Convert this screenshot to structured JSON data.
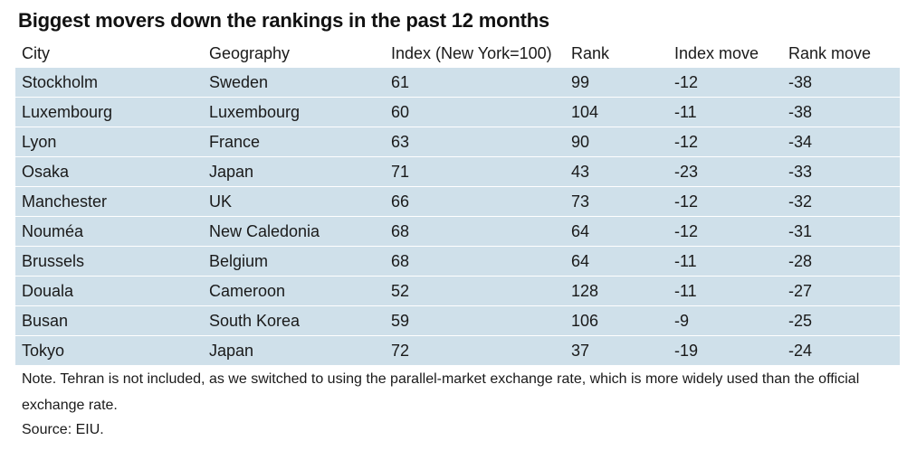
{
  "title": "Biggest movers down the rankings in the past 12 months",
  "table": {
    "headers": [
      "City",
      "Geography",
      "Index (New York=100)",
      "Rank",
      "Index move",
      "Rank move"
    ],
    "rows": [
      [
        "Stockholm",
        "Sweden",
        "61",
        "99",
        "-12",
        "-38"
      ],
      [
        "Luxembourg",
        "Luxembourg",
        "60",
        "104",
        "-11",
        "-38"
      ],
      [
        "Lyon",
        "France",
        "63",
        "90",
        "-12",
        "-34"
      ],
      [
        "Osaka",
        "Japan",
        "71",
        "43",
        "-23",
        "-33"
      ],
      [
        "Manchester",
        "UK",
        "66",
        "73",
        "-12",
        "-32"
      ],
      [
        "Nouméa",
        "New Caledonia",
        "68",
        "64",
        "-12",
        "-31"
      ],
      [
        "Brussels",
        "Belgium",
        "68",
        "64",
        "-11",
        "-28"
      ],
      [
        "Douala",
        "Cameroon",
        "52",
        "128",
        "-11",
        "-27"
      ],
      [
        "Busan",
        "South Korea",
        "59",
        "106",
        "-9",
        "-25"
      ],
      [
        "Tokyo",
        "Japan",
        "72",
        "37",
        "-19",
        "-24"
      ]
    ]
  },
  "note": "Note. Tehran is not included, as we switched to using the parallel-market exchange rate, which is more widely used than the official exchange rate.",
  "source": "Source: EIU.",
  "colors": {
    "row_background": "#cfe0ea",
    "text": "#1a1a1a"
  }
}
